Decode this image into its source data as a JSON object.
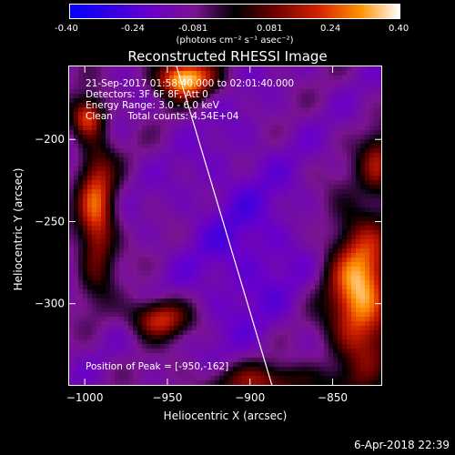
{
  "colorbar": {
    "ticks": [
      "-0.40",
      "-0.24",
      "-0.081",
      "0.081",
      "0.24",
      "0.40"
    ],
    "unit_label": "(photons cm⁻² s⁻¹ asec⁻²)"
  },
  "chart_data": {
    "type": "heatmap",
    "title": "Reconstructed RHESSI Image",
    "xlabel": "Heliocentric X (arcsec)",
    "ylabel": "Heliocentric Y (arcsec)",
    "xlim": [
      -1010,
      -820
    ],
    "ylim": [
      -350,
      -155
    ],
    "x_ticks": [
      -1000,
      -950,
      -900,
      -850
    ],
    "y_ticks": [
      -200,
      -250,
      -300
    ],
    "colorbar_range": [
      -0.4,
      0.4
    ],
    "peak": [
      -950,
      -162
    ],
    "limb_line": [
      [
        -945,
        -155
      ],
      [
        -887,
        -350
      ]
    ]
  },
  "annotations": {
    "line1": "21-Sep-2017 01:58:40.000 to 02:01:40.000",
    "line2": "Detectors: 3F 6F 8F, Att 0",
    "line3": "Energy Range: 3.0 - 6.0 keV",
    "line4": "Clean     Total counts: 4.54E+04",
    "peak": "Position of Peak = [-950,-162]"
  },
  "timestamp": "6-Apr-2018 22:39",
  "colors": {
    "background": "#000000",
    "text": "#ffffff"
  }
}
